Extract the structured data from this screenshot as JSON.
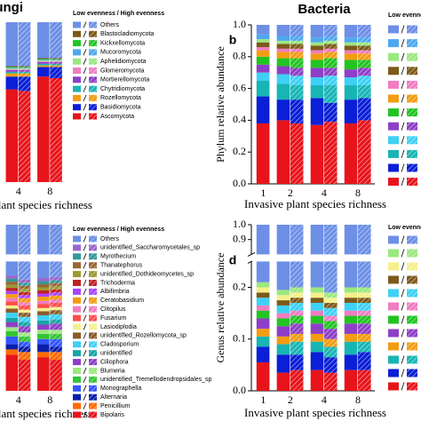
{
  "chart_data": [
    {
      "type": "bar",
      "stacked": true,
      "title": "Fungi",
      "x_label": "Invasive plant species richness",
      "legend_title": "Low evenness / High evenness",
      "categories": [
        "4",
        null,
        "8",
        null
      ],
      "hatched": [
        false,
        true,
        false,
        true
      ],
      "ylim": [
        0,
        1
      ],
      "series": [
        {
          "name": "Ascomycota",
          "color": "#e8141b",
          "values": [
            0.58,
            0.57,
            0.66,
            0.65
          ]
        },
        {
          "name": "Basidiomycota",
          "color": "#0a1fd6",
          "values": [
            0.08,
            0.09,
            0.06,
            0.07
          ]
        },
        {
          "name": "Rozellomycota",
          "color": "#f39c12",
          "values": [
            0.02,
            0.02,
            0.01,
            0.01
          ]
        },
        {
          "name": "Chytridiomycota",
          "color": "#18b5b5",
          "values": [
            0.01,
            0.01,
            0.01,
            0.01
          ]
        },
        {
          "name": "Mortierellomycota",
          "color": "#8e3fc7",
          "values": [
            0.01,
            0.01,
            0.01,
            0.01
          ]
        },
        {
          "name": "Glomeromycota",
          "color": "#f07cc2",
          "values": [
            0.005,
            0.005,
            0.005,
            0.005
          ]
        },
        {
          "name": "Aphelidiomycota",
          "color": "#9be87f",
          "values": [
            0.005,
            0.005,
            0.005,
            0.005
          ]
        },
        {
          "name": "Mucoromycota",
          "color": "#4ea8ef",
          "values": [
            0.005,
            0.005,
            0.005,
            0.005
          ]
        },
        {
          "name": "Kickxellomycota",
          "color": "#22c422",
          "values": [
            0.005,
            0.005,
            0.005,
            0.005
          ]
        },
        {
          "name": "Blastocladiomycota",
          "color": "#7d5a1a",
          "values": [
            0.005,
            0.005,
            0.005,
            0.005
          ]
        },
        {
          "name": "Others",
          "color": "#6d8fe6",
          "values": [
            0.275,
            0.275,
            0.225,
            0.225
          ]
        }
      ]
    },
    {
      "type": "bar",
      "stacked": true,
      "title": "Bacteria",
      "panel_label": "b",
      "y_label": "Phylum relative abundance",
      "x_label": "Invasive plant species richness",
      "legend_title": "Low evenness / High evenness",
      "categories": [
        "1",
        "2",
        null,
        "4",
        null,
        "8",
        null
      ],
      "hatched": [
        false,
        false,
        true,
        false,
        true,
        false,
        true
      ],
      "ylim": [
        0,
        1
      ],
      "yticks": [
        {
          "value": 0,
          "label": "0.0"
        },
        0.2,
        0.4,
        0.6,
        0.8,
        {
          "value": 1,
          "label": "1.0"
        }
      ],
      "series": [
        {
          "color": "#e8141b",
          "values": [
            0.38,
            0.4,
            0.38,
            0.37,
            0.39,
            0.38,
            0.4
          ]
        },
        {
          "color": "#0a1fd6",
          "values": [
            0.17,
            0.13,
            0.15,
            0.17,
            0.12,
            0.15,
            0.14
          ]
        },
        {
          "color": "#18b5b5",
          "values": [
            0.1,
            0.1,
            0.09,
            0.08,
            0.11,
            0.09,
            0.08
          ]
        },
        {
          "color": "#3fd0f5",
          "values": [
            0.05,
            0.06,
            0.06,
            0.05,
            0.06,
            0.05,
            0.06
          ]
        },
        {
          "color": "#8e3fc7",
          "values": [
            0.05,
            0.05,
            0.05,
            0.06,
            0.05,
            0.05,
            0.05
          ]
        },
        {
          "color": "#22c422",
          "values": [
            0.05,
            0.05,
            0.06,
            0.05,
            0.06,
            0.06,
            0.05
          ]
        },
        {
          "color": "#f39c12",
          "values": [
            0.04,
            0.04,
            0.04,
            0.04,
            0.04,
            0.04,
            0.04
          ]
        },
        {
          "color": "#f07cc2",
          "values": [
            0.02,
            0.02,
            0.02,
            0.02,
            0.02,
            0.02,
            0.02
          ]
        },
        {
          "color": "#7d5a1a",
          "values": [
            0.03,
            0.03,
            0.03,
            0.03,
            0.03,
            0.03,
            0.03
          ]
        },
        {
          "color": "#9be87f",
          "values": [
            0.02,
            0.02,
            0.02,
            0.02,
            0.02,
            0.02,
            0.02
          ]
        },
        {
          "color": "#4ea8ef",
          "values": [
            0.03,
            0.03,
            0.03,
            0.03,
            0.03,
            0.03,
            0.03
          ]
        },
        {
          "color": "#6d8fe6",
          "values": [
            0.06,
            0.07,
            0.07,
            0.08,
            0.07,
            0.08,
            0.08
          ]
        }
      ]
    },
    {
      "type": "bar",
      "stacked": true,
      "x_label": "Invasive plant species richness",
      "legend_title": "Low evenness / High evenness",
      "categories": [
        "4",
        null,
        "8",
        null
      ],
      "hatched": [
        false,
        true,
        false,
        true
      ],
      "ylim": [
        0,
        1
      ],
      "axis_break": [
        0.25,
        0.8
      ],
      "series": [
        {
          "name": "Bipolaris",
          "color": "#e8141b",
          "values": [
            0.07,
            0.06,
            0.065,
            0.06
          ]
        },
        {
          "name": "Penicillium",
          "color": "#ff6a00",
          "values": [
            0.01,
            0.015,
            0.01,
            0.015
          ]
        },
        {
          "name": "Alternaria",
          "color": "#0a1fa8",
          "values": [
            0.01,
            0.01,
            0.015,
            0.01
          ]
        },
        {
          "name": "Monographella",
          "color": "#3355ff",
          "values": [
            0.015,
            0.01,
            0.01,
            0.015
          ]
        },
        {
          "name": "unidentified_Tremellodendropsidales_sp",
          "color": "#33c433",
          "values": [
            0.01,
            0.01,
            0.01,
            0.01
          ]
        },
        {
          "name": "Blumeria",
          "color": "#9be87f",
          "values": [
            0.008,
            0.008,
            0.008,
            0.008
          ]
        },
        {
          "name": "Ciliophora",
          "color": "#8e3fc7",
          "values": [
            0.01,
            0.012,
            0.01,
            0.012
          ]
        },
        {
          "name": "unidentified",
          "color": "#18a5a5",
          "values": [
            0.008,
            0.008,
            0.008,
            0.008
          ]
        },
        {
          "name": "Cladosporium",
          "color": "#3fd0f5",
          "values": [
            0.01,
            0.01,
            0.01,
            0.01
          ]
        },
        {
          "name": "unidentified_Rozellomycota_sp",
          "color": "#8b5a2b",
          "values": [
            0.008,
            0.008,
            0.008,
            0.008
          ]
        },
        {
          "name": "Lasiodiplodia",
          "color": "#f5f08a",
          "values": [
            0.006,
            0.006,
            0.006,
            0.006
          ]
        },
        {
          "name": "Fusarium",
          "color": "#ff4d4d",
          "values": [
            0.008,
            0.008,
            0.008,
            0.008
          ]
        },
        {
          "name": "Clitopilus",
          "color": "#f07cc2",
          "values": [
            0.006,
            0.006,
            0.006,
            0.006
          ]
        },
        {
          "name": "Ceratobasidium",
          "color": "#f39c12",
          "values": [
            0.008,
            0.008,
            0.008,
            0.008
          ]
        },
        {
          "name": "Albifimbria",
          "color": "#aa44ff",
          "values": [
            0.006,
            0.006,
            0.006,
            0.006
          ]
        },
        {
          "name": "Trichoderma",
          "color": "#c02222",
          "values": [
            0.006,
            0.006,
            0.006,
            0.006
          ]
        },
        {
          "name": "unidentified_Dothideomycetes_sp",
          "color": "#9a9a33",
          "values": [
            0.006,
            0.006,
            0.006,
            0.006
          ]
        },
        {
          "name": "Thanatephorus",
          "color": "#996633",
          "values": [
            0.006,
            0.006,
            0.006,
            0.006
          ]
        },
        {
          "name": "Myrothecium",
          "color": "#339999",
          "values": [
            0.006,
            0.006,
            0.006,
            0.006
          ]
        },
        {
          "name": "unidentified_Saccharomycetales_sp",
          "color": "#9966cc",
          "values": [
            0.006,
            0.006,
            0.006,
            0.006
          ]
        },
        {
          "name": "Others",
          "color": "#6d8fe6",
          "values": [
            0.777,
            0.785,
            0.782,
            0.78
          ]
        }
      ]
    },
    {
      "type": "bar",
      "stacked": true,
      "panel_label": "d",
      "y_label": "Genus relative abundance",
      "x_label": "Invasive plant species richness",
      "legend_title": "Low evenness / High evenness",
      "categories": [
        "1",
        "2",
        null,
        "4",
        null,
        "8",
        null
      ],
      "hatched": [
        false,
        false,
        true,
        false,
        true,
        false,
        true
      ],
      "ylim": [
        0,
        1
      ],
      "axis_break": [
        0.25,
        0.8
      ],
      "yticks": [
        {
          "value": 0,
          "label": "0.0"
        },
        0.1,
        0.2,
        0.9,
        {
          "value": 1,
          "label": "1.0"
        }
      ],
      "series": [
        {
          "color": "#e8141b",
          "values": [
            0.055,
            0.035,
            0.04,
            0.04,
            0.035,
            0.04,
            0.04
          ]
        },
        {
          "color": "#0a1fd6",
          "values": [
            0.03,
            0.035,
            0.03,
            0.035,
            0.03,
            0.03,
            0.035
          ]
        },
        {
          "color": "#18b5b5",
          "values": [
            0.02,
            0.02,
            0.025,
            0.02,
            0.02,
            0.025,
            0.02
          ]
        },
        {
          "color": "#f39c12",
          "values": [
            0.015,
            0.015,
            0.015,
            0.015,
            0.015,
            0.015,
            0.015
          ]
        },
        {
          "color": "#8e3fc7",
          "values": [
            0.02,
            0.02,
            0.02,
            0.02,
            0.02,
            0.02,
            0.02
          ]
        },
        {
          "color": "#22c422",
          "values": [
            0.015,
            0.015,
            0.015,
            0.015,
            0.015,
            0.015,
            0.015
          ]
        },
        {
          "color": "#f07cc2",
          "values": [
            0.01,
            0.01,
            0.01,
            0.01,
            0.01,
            0.01,
            0.01
          ]
        },
        {
          "color": "#3fd0f5",
          "values": [
            0.015,
            0.015,
            0.015,
            0.015,
            0.015,
            0.015,
            0.015
          ]
        },
        {
          "color": "#7d5a1a",
          "values": [
            0.01,
            0.01,
            0.01,
            0.01,
            0.01,
            0.01,
            0.01
          ]
        },
        {
          "color": "#f5f08a",
          "values": [
            0.01,
            0.01,
            0.01,
            0.01,
            0.01,
            0.01,
            0.01
          ]
        },
        {
          "color": "#9be87f",
          "values": [
            0.01,
            0.01,
            0.01,
            0.01,
            0.01,
            0.01,
            0.01
          ]
        },
        {
          "color": "#6d8fe6",
          "values": [
            0.79,
            0.805,
            0.8,
            0.8,
            0.81,
            0.8,
            0.8
          ]
        }
      ]
    }
  ]
}
